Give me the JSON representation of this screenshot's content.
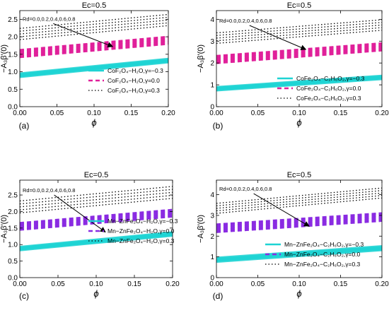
{
  "chart_data": [
    {
      "id": "a",
      "type": "line",
      "panel_label": "(a)",
      "title": "Ec=0.5",
      "xlabel": "ϕ",
      "ylabel": "−A₃β′(0)",
      "xlim": [
        0,
        0.2
      ],
      "ylim": [
        0,
        2.75
      ],
      "xticks": [
        "0.00",
        "0.05",
        "0.10",
        "0.15",
        "0.20"
      ],
      "yticks": [
        "0.0",
        "0.5",
        "1.0",
        "1.5",
        "2.0",
        "2.5"
      ],
      "ytick_values": [
        0,
        0.5,
        1.0,
        1.5,
        2.0,
        2.5
      ],
      "annotation": "Rd=0.0,0.2,0.4,0.6,0.8",
      "arrow_from": [
        0.045,
        2.38
      ],
      "arrow_to": [
        0.125,
        1.72
      ],
      "grid": false,
      "legend_position": "center-right",
      "series": [
        {
          "name": "CoF₂O₄−H₂O,γ=−0.3",
          "style": "solid",
          "color": "#1ed3d3",
          "x": [
            0,
            0.2
          ],
          "lines": [
            [
              0.86,
              1.28
            ],
            [
              0.88,
              1.3
            ],
            [
              0.9,
              1.32
            ],
            [
              0.92,
              1.34
            ],
            [
              0.94,
              1.36
            ]
          ]
        },
        {
          "name": "CoF₂O₄−H₂O,γ=0.0",
          "style": "dashed",
          "color": "#e0209a",
          "x": [
            0,
            0.2
          ],
          "lines": [
            [
              1.42,
              1.8
            ],
            [
              1.47,
              1.85
            ],
            [
              1.52,
              1.9
            ],
            [
              1.57,
              1.95
            ],
            [
              1.62,
              2.0
            ]
          ]
        },
        {
          "name": "CoF₂O₄−H₂O,γ=0.3",
          "style": "dotted",
          "color": "#000000",
          "x": [
            0,
            0.2
          ],
          "lines": [
            [
              1.92,
              2.32
            ],
            [
              2.0,
              2.4
            ],
            [
              2.08,
              2.48
            ],
            [
              2.16,
              2.56
            ],
            [
              2.24,
              2.64
            ]
          ]
        }
      ]
    },
    {
      "id": "b",
      "type": "line",
      "panel_label": "(b)",
      "title": "Ec=0.5",
      "xlabel": "ϕ",
      "ylabel": "−A₃β′(0)",
      "xlim": [
        0,
        0.2
      ],
      "ylim": [
        0,
        4.4
      ],
      "xticks": [
        "0.00",
        "0.05",
        "0.10",
        "0.15",
        "0.20"
      ],
      "yticks": [
        "0",
        "1",
        "2",
        "3",
        "4"
      ],
      "ytick_values": [
        0,
        1,
        2,
        3,
        4
      ],
      "annotation": "Rd=0.0,0.2,0.4,0.6,0.8",
      "arrow_from": [
        0.04,
        3.72
      ],
      "arrow_to": [
        0.108,
        2.62
      ],
      "grid": false,
      "legend_position": "bottom-right",
      "series": [
        {
          "name": "CoFe₂O₄−C₂H₆O₂,γ=−0.3",
          "style": "solid",
          "color": "#1ed3d3",
          "x": [
            0,
            0.2
          ],
          "lines": [
            [
              0.76,
              1.28
            ],
            [
              0.79,
              1.31
            ],
            [
              0.82,
              1.34
            ],
            [
              0.85,
              1.37
            ],
            [
              0.88,
              1.4
            ]
          ]
        },
        {
          "name": "CoFe₂O₄−C₂H₆O₂,γ=0.0",
          "style": "dashed",
          "color": "#e0209a",
          "x": [
            0,
            0.2
          ],
          "lines": [
            [
              2.0,
              2.58
            ],
            [
              2.08,
              2.66
            ],
            [
              2.16,
              2.74
            ],
            [
              2.24,
              2.82
            ],
            [
              2.32,
              2.9
            ]
          ]
        },
        {
          "name": "CoFe₂O₄−C₂H₆O₂,γ=0.3",
          "style": "dotted",
          "color": "#000000",
          "x": [
            0,
            0.2
          ],
          "lines": [
            [
              2.9,
              3.5
            ],
            [
              3.02,
              3.62
            ],
            [
              3.14,
              3.74
            ],
            [
              3.26,
              3.86
            ],
            [
              3.38,
              3.98
            ]
          ]
        }
      ]
    },
    {
      "id": "c",
      "type": "line",
      "panel_label": "(c)",
      "title": "Ec=0.5",
      "xlabel": "ϕ",
      "ylabel": "−A₃β′(0)",
      "xlim": [
        0,
        0.2
      ],
      "ylim": [
        0,
        2.95
      ],
      "xticks": [
        "0.00",
        "0.05",
        "0.10",
        "0.15",
        "0.20"
      ],
      "yticks": [
        "0.0",
        "0.5",
        "1.0",
        "1.5",
        "2.0",
        "2.5"
      ],
      "ytick_values": [
        0,
        0.5,
        1.0,
        1.5,
        2.0,
        2.5
      ],
      "annotation": "Rd=0.0,0.2,0.4,0.6,0.8",
      "arrow_from": [
        0.045,
        2.5
      ],
      "arrow_to": [
        0.112,
        1.38
      ],
      "grid": false,
      "legend_position": "center-right",
      "series": [
        {
          "name": "Mn−ZnFe₂O₄−H₂O,γ=−0.3",
          "style": "solid",
          "color": "#1ed3d3",
          "x": [
            0,
            0.2
          ],
          "lines": [
            [
              0.84,
              1.28
            ],
            [
              0.86,
              1.3
            ],
            [
              0.88,
              1.32
            ],
            [
              0.9,
              1.34
            ],
            [
              0.92,
              1.36
            ]
          ]
        },
        {
          "name": "Mn−ZnFe₂O₄−H₂O,γ=0.0",
          "style": "dashed",
          "color": "#8a2be2",
          "x": [
            0,
            0.2
          ],
          "lines": [
            [
              1.45,
              1.85
            ],
            [
              1.5,
              1.9
            ],
            [
              1.55,
              1.95
            ],
            [
              1.6,
              2.0
            ],
            [
              1.65,
              2.05
            ]
          ]
        },
        {
          "name": "Mn−ZnFe₂O₄−H₂O,γ=0.3",
          "style": "dotted",
          "color": "#000000",
          "x": [
            0,
            0.2
          ],
          "lines": [
            [
              1.96,
              2.4
            ],
            [
              2.05,
              2.49
            ],
            [
              2.14,
              2.58
            ],
            [
              2.23,
              2.67
            ],
            [
              2.32,
              2.76
            ]
          ]
        }
      ]
    },
    {
      "id": "d",
      "type": "line",
      "panel_label": "(d)",
      "title": "Ec=0.5",
      "xlabel": "ϕ",
      "ylabel": "−A₃β′(0)",
      "xlim": [
        0,
        0.2
      ],
      "ylim": [
        0,
        4.7
      ],
      "xticks": [
        "0.00",
        "0.05",
        "0.10",
        "0.15",
        "0.20"
      ],
      "yticks": [
        "0",
        "1",
        "2",
        "3",
        "4"
      ],
      "ytick_values": [
        0,
        1,
        2,
        3,
        4
      ],
      "annotation": "Rd=0.0,0.2,0.4,0.6,0.8",
      "arrow_from": [
        0.045,
        4.05
      ],
      "arrow_to": [
        0.112,
        2.48
      ],
      "grid": false,
      "legend_position": "bottom-right",
      "series": [
        {
          "name": "Mn−ZnFe₂O₄−C₂H₆O₂,γ=−0.3",
          "style": "solid",
          "color": "#1ed3d3",
          "x": [
            0,
            0.2
          ],
          "lines": [
            [
              0.78,
              1.34
            ],
            [
              0.82,
              1.38
            ],
            [
              0.86,
              1.42
            ],
            [
              0.9,
              1.46
            ],
            [
              0.94,
              1.5
            ]
          ]
        },
        {
          "name": "Mn−ZnFe₂O₄−C₂H₆O₂,γ=0.0",
          "style": "dashed",
          "color": "#8a2be2",
          "x": [
            0,
            0.2
          ],
          "lines": [
            [
              2.2,
              2.74
            ],
            [
              2.29,
              2.83
            ],
            [
              2.38,
              2.92
            ],
            [
              2.47,
              3.01
            ],
            [
              2.56,
              3.1
            ]
          ]
        },
        {
          "name": "Mn−ZnFe₂O₄−C₂H₆O₂,γ=0.3",
          "style": "dotted",
          "color": "#000000",
          "x": [
            0,
            0.2
          ],
          "lines": [
            [
              3.1,
              3.84
            ],
            [
              3.22,
              3.96
            ],
            [
              3.34,
              4.08
            ],
            [
              3.46,
              4.2
            ],
            [
              3.58,
              4.32
            ]
          ]
        }
      ]
    }
  ]
}
